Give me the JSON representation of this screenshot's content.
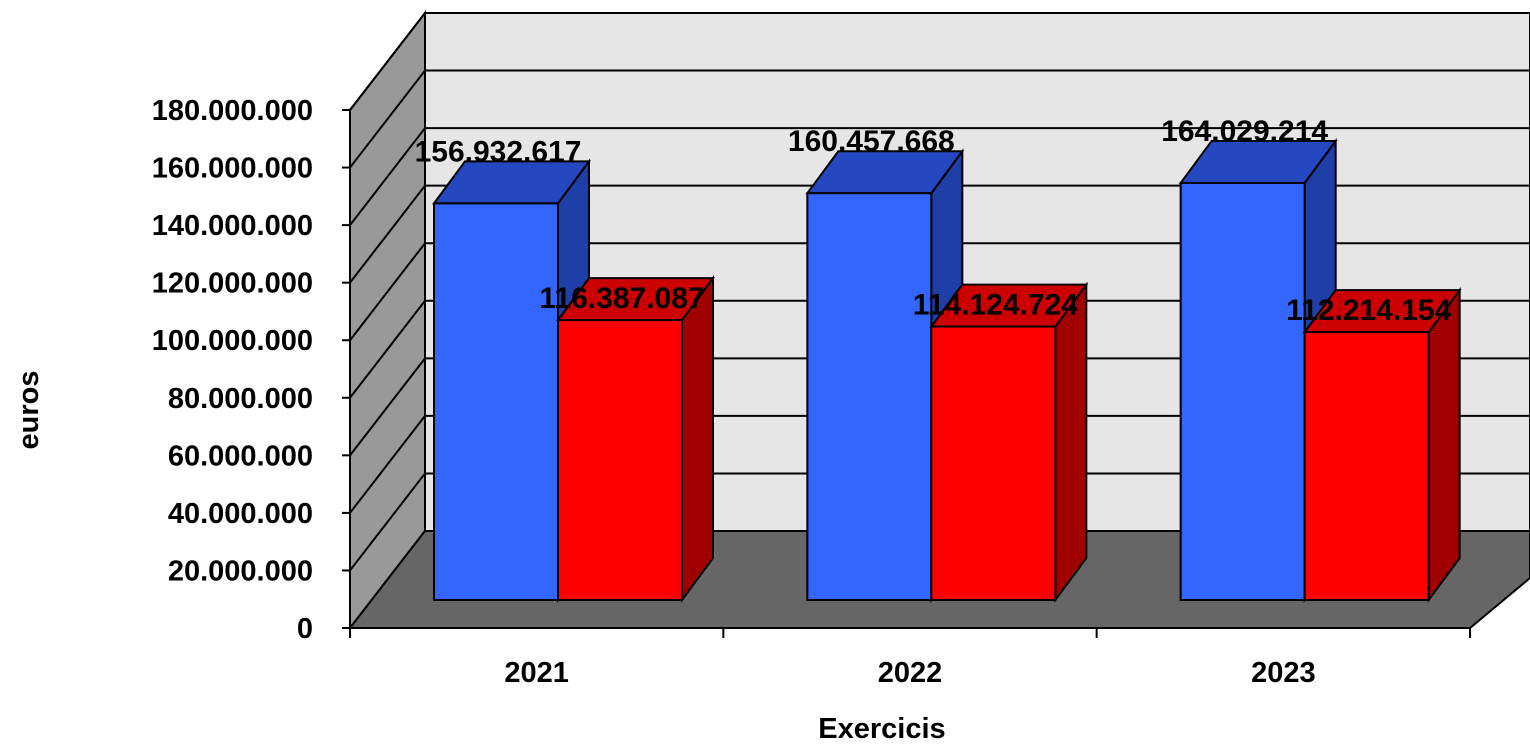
{
  "chart_data": {
    "type": "bar",
    "title": "",
    "xlabel": "Exercicis",
    "ylabel": "euros",
    "categories": [
      "2021",
      "2022",
      "2023"
    ],
    "series": [
      {
        "values": [
          156932617,
          160457668,
          164029214
        ]
      },
      {
        "values": [
          116387087,
          114124724,
          112214154
        ]
      }
    ],
    "data_labels": {
      "series_0": [
        "156.932.617",
        "160.457.668",
        "164.029.214"
      ],
      "series_1": [
        "116.387.087",
        "114.124.724",
        "112.214.154"
      ]
    },
    "ylim": [
      0,
      180000000
    ],
    "yticks": [
      0,
      20000000,
      40000000,
      60000000,
      80000000,
      100000000,
      120000000,
      140000000,
      160000000,
      180000000
    ],
    "ytick_labels": [
      "0",
      "20.000.000",
      "40.000.000",
      "60.000.000",
      "80.000.000",
      "100.000.000",
      "120.000.000",
      "140.000.000",
      "160.000.000",
      "180.000.000"
    ],
    "grid": true,
    "legend": "none",
    "style": "3d",
    "colors": {
      "series_0_front": "#3366FF",
      "series_0_top": "#2448C0",
      "series_0_side": "#1F3FA8",
      "series_1_front": "#FF0000",
      "series_1_top": "#CC0000",
      "series_1_side": "#A00000",
      "back_wall": "#E6E6E6",
      "side_wall": "#999999",
      "floor": "#666666"
    }
  }
}
